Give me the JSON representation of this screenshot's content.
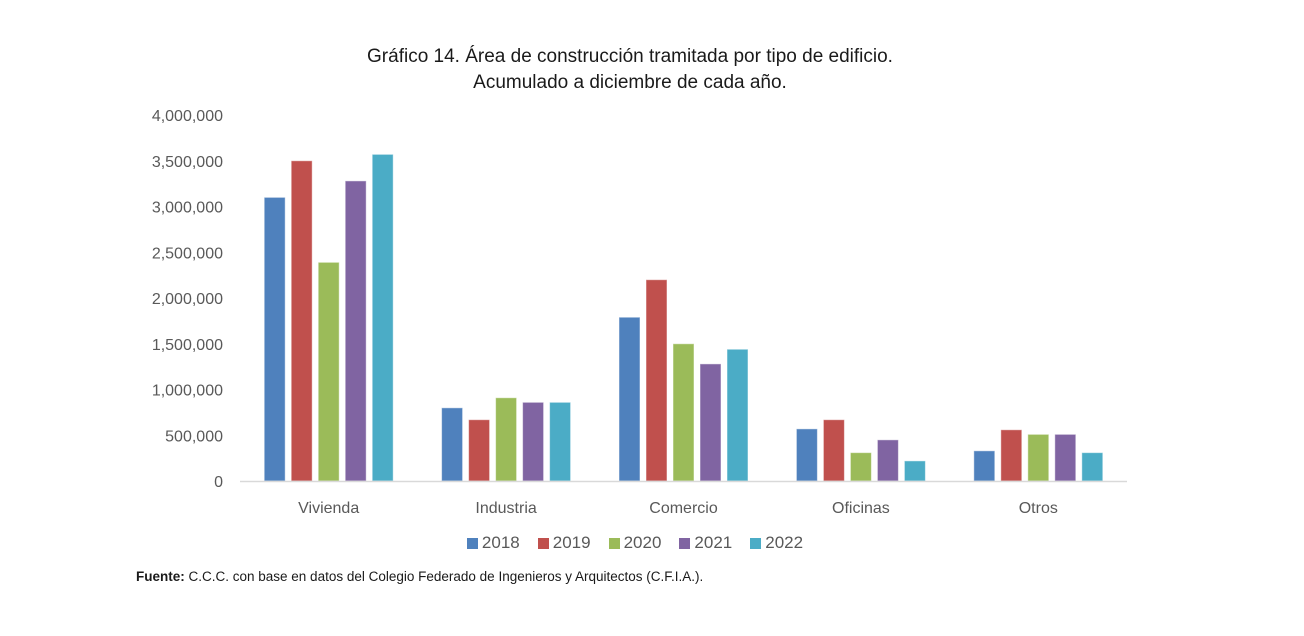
{
  "chart_data": {
    "type": "bar",
    "title": "Gráfico 14. Área de construcción tramitada por tipo de edificio.",
    "subtitle": "Acumulado a diciembre de cada año.",
    "xlabel": "",
    "ylabel": "",
    "ylim": [
      0,
      4000000
    ],
    "yticks": [
      0,
      500000,
      1000000,
      1500000,
      2000000,
      2500000,
      3000000,
      3500000,
      4000000
    ],
    "ytick_labels": [
      "0",
      "500,000",
      "1,000,000",
      "1,500,000",
      "2,000,000",
      "2,500,000",
      "3,000,000",
      "3,500,000",
      "4,000,000"
    ],
    "grid": false,
    "legend_position": "bottom",
    "categories": [
      "Vivienda",
      "Industria",
      "Comercio",
      "Oficinas",
      "Otros"
    ],
    "series": [
      {
        "name": "2018",
        "color": "#4F81BD",
        "values": [
          3100000,
          800000,
          1790000,
          570000,
          330000
        ]
      },
      {
        "name": "2019",
        "color": "#C0504D",
        "values": [
          3500000,
          670000,
          2200000,
          670000,
          560000
        ]
      },
      {
        "name": "2020",
        "color": "#9BBB59",
        "values": [
          2390000,
          910000,
          1500000,
          310000,
          510000
        ]
      },
      {
        "name": "2021",
        "color": "#8064A2",
        "values": [
          3280000,
          860000,
          1280000,
          450000,
          510000
        ]
      },
      {
        "name": "2022",
        "color": "#4BACC6",
        "values": [
          3570000,
          860000,
          1440000,
          220000,
          310000
        ]
      }
    ]
  },
  "source": {
    "label": "Fuente:",
    "text": " C.C.C. con base en datos del Colegio Federado de Ingenieros y Arquitectos (C.F.I.A.)."
  }
}
